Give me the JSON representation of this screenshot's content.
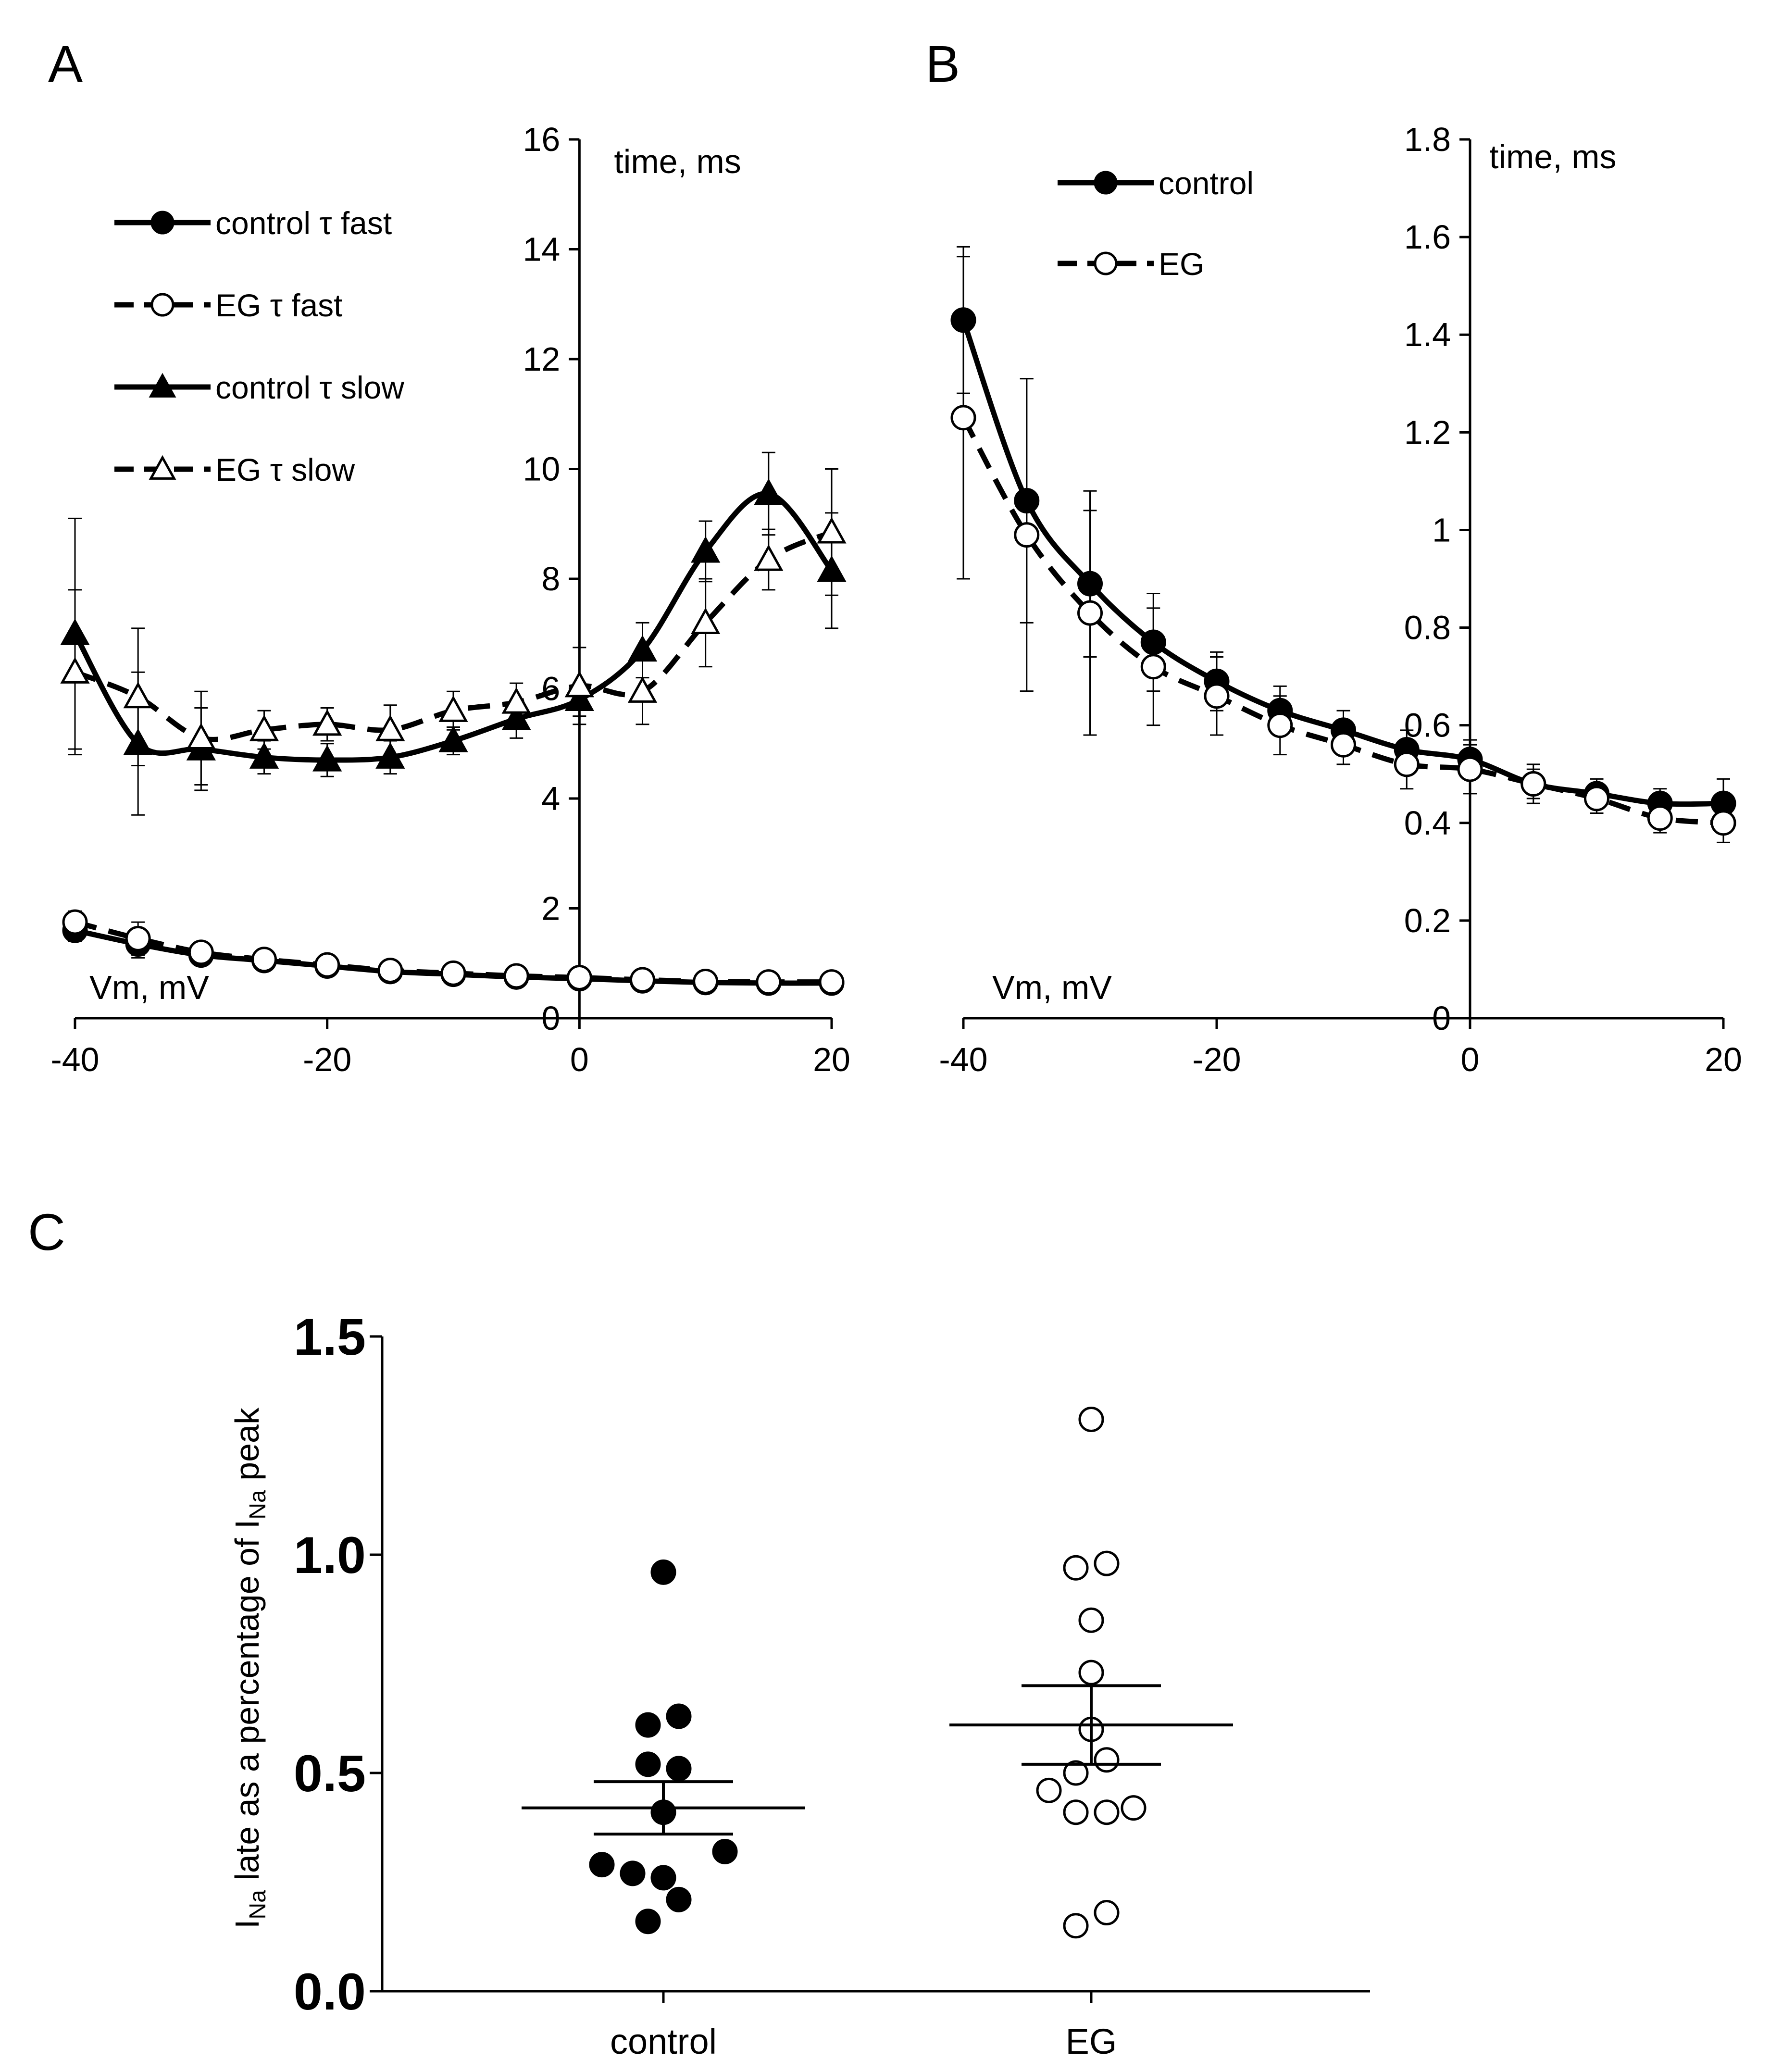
{
  "figure": {
    "panels": [
      {
        "label": "A"
      },
      {
        "label": "B"
      },
      {
        "label": "C"
      }
    ]
  },
  "chart_data": [
    {
      "panel": "A",
      "type": "line",
      "xlabel": "Vm, mV",
      "ylabel": "time, ms",
      "xlim": [
        -40,
        20
      ],
      "ylim": [
        0,
        16
      ],
      "x_ticks": [
        -40,
        -20,
        0,
        20
      ],
      "y_ticks": [
        0,
        2,
        4,
        6,
        8,
        10,
        12,
        14,
        16
      ],
      "x": [
        -40,
        -35,
        -30,
        -25,
        -20,
        -15,
        -10,
        -5,
        0,
        5,
        10,
        15,
        20
      ],
      "series": [
        {
          "name": "control τ fast",
          "line": "solid",
          "marker": "circle-filled",
          "values": [
            1.6,
            1.35,
            1.15,
            1.05,
            0.95,
            0.85,
            0.8,
            0.75,
            0.72,
            0.68,
            0.65,
            0.64,
            0.64
          ],
          "errors": [
            0.2,
            0.25,
            0.15,
            0.1,
            0.08,
            0.06,
            0.05,
            0.05,
            0.05,
            0.05,
            0.04,
            0.04,
            0.04
          ]
        },
        {
          "name": "EG τ fast",
          "line": "dashed",
          "marker": "circle-open",
          "values": [
            1.75,
            1.45,
            1.2,
            1.07,
            0.97,
            0.87,
            0.82,
            0.77,
            0.74,
            0.7,
            0.67,
            0.66,
            0.66
          ],
          "errors": [
            0.2,
            0.3,
            0.15,
            0.1,
            0.08,
            0.06,
            0.05,
            0.05,
            0.05,
            0.05,
            0.04,
            0.04,
            0.04
          ]
        },
        {
          "name": "control τ slow",
          "line": "solid",
          "marker": "triangle-filled",
          "values": [
            7.0,
            5.0,
            4.9,
            4.75,
            4.7,
            4.75,
            5.05,
            5.45,
            5.8,
            6.7,
            8.5,
            9.55,
            8.15
          ],
          "errors": [
            2.1,
            1.3,
            0.75,
            0.3,
            0.3,
            0.3,
            0.25,
            0.35,
            0.3,
            0.5,
            0.55,
            0.75,
            1.05
          ]
        },
        {
          "name": "EG τ slow",
          "line": "dashed",
          "marker": "triangle-open",
          "values": [
            6.3,
            5.85,
            5.1,
            5.25,
            5.35,
            5.25,
            5.6,
            5.75,
            6.05,
            5.95,
            7.2,
            8.35,
            8.85
          ],
          "errors": [
            1.5,
            1.25,
            0.85,
            0.35,
            0.3,
            0.45,
            0.35,
            0.35,
            0.7,
            0.6,
            0.8,
            0.55,
            1.15
          ]
        }
      ]
    },
    {
      "panel": "B",
      "type": "line",
      "xlabel": "Vm, mV",
      "ylabel": "time, ms",
      "xlim": [
        -40,
        20
      ],
      "ylim": [
        0,
        1.8
      ],
      "x_ticks": [
        -40,
        -20,
        0,
        20
      ],
      "y_ticks": [
        "0",
        "0.2",
        "0.4",
        "0.6",
        "0.8",
        "1",
        "1.2",
        "1.4",
        "1.6",
        "1.8"
      ],
      "x": [
        -40,
        -35,
        -30,
        -25,
        -20,
        -15,
        -10,
        -5,
        0,
        5,
        10,
        15,
        20
      ],
      "series": [
        {
          "name": "control",
          "line": "solid",
          "marker": "circle-filled",
          "values": [
            1.43,
            1.06,
            0.89,
            0.77,
            0.69,
            0.63,
            0.59,
            0.55,
            0.53,
            0.48,
            0.46,
            0.44,
            0.44
          ],
          "errors": [
            0.15,
            0.25,
            0.15,
            0.1,
            0.06,
            0.05,
            0.04,
            0.04,
            0.04,
            0.03,
            0.03,
            0.03,
            0.05
          ]
        },
        {
          "name": "EG",
          "line": "dashed",
          "marker": "circle-open",
          "values": [
            1.23,
            0.99,
            0.83,
            0.72,
            0.66,
            0.6,
            0.56,
            0.52,
            0.51,
            0.48,
            0.45,
            0.41,
            0.4
          ],
          "errors": [
            0.33,
            0.32,
            0.25,
            0.12,
            0.08,
            0.06,
            0.04,
            0.05,
            0.05,
            0.04,
            0.03,
            0.03,
            0.04
          ]
        }
      ]
    },
    {
      "panel": "C",
      "type": "scatter",
      "ylabel": "I late as a percentage of I peak",
      "ylabel_subscript": "Na",
      "ylim": [
        0,
        1.5
      ],
      "y_ticks": [
        "0.0",
        "0.5",
        "1.0",
        "1.5"
      ],
      "categories": [
        "control",
        "EG"
      ],
      "series": [
        {
          "name": "control",
          "marker": "circle-filled",
          "mean": 0.42,
          "sem_upper": 0.48,
          "sem_lower": 0.36,
          "points": [
            {
              "offset": 0,
              "y": 0.96
            },
            {
              "offset": 0.4,
              "y": 0.63
            },
            {
              "offset": -0.4,
              "y": 0.61
            },
            {
              "offset": -0.4,
              "y": 0.52
            },
            {
              "offset": 0.4,
              "y": 0.51
            },
            {
              "offset": 0,
              "y": 0.41
            },
            {
              "offset": -1.6,
              "y": 0.29
            },
            {
              "offset": -0.8,
              "y": 0.27
            },
            {
              "offset": 0,
              "y": 0.26
            },
            {
              "offset": 1.6,
              "y": 0.32
            },
            {
              "offset": 0.4,
              "y": 0.21
            },
            {
              "offset": -0.4,
              "y": 0.16
            }
          ]
        },
        {
          "name": "EG",
          "marker": "circle-open",
          "mean": 0.61,
          "sem_upper": 0.7,
          "sem_lower": 0.52,
          "points": [
            {
              "offset": 0,
              "y": 1.31
            },
            {
              "offset": -0.4,
              "y": 0.97
            },
            {
              "offset": 0.4,
              "y": 0.98
            },
            {
              "offset": 0,
              "y": 0.85
            },
            {
              "offset": 0,
              "y": 0.73
            },
            {
              "offset": 0,
              "y": 0.6
            },
            {
              "offset": 0.4,
              "y": 0.53
            },
            {
              "offset": -1.1,
              "y": 0.46
            },
            {
              "offset": -0.4,
              "y": 0.5
            },
            {
              "offset": -0.4,
              "y": 0.41
            },
            {
              "offset": 0.4,
              "y": 0.41
            },
            {
              "offset": 1.1,
              "y": 0.42
            },
            {
              "offset": -0.4,
              "y": 0.15
            },
            {
              "offset": 0.4,
              "y": 0.18
            }
          ]
        }
      ]
    }
  ]
}
